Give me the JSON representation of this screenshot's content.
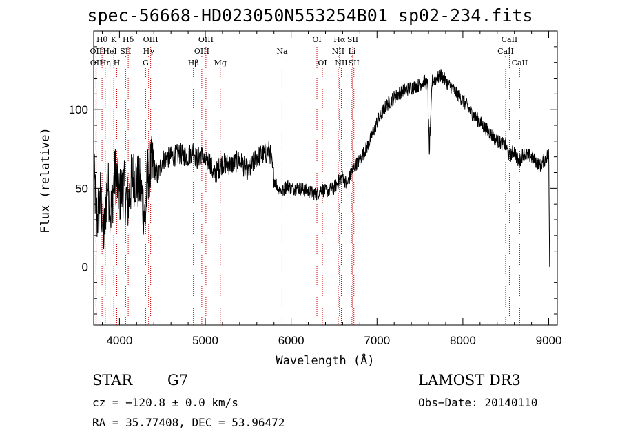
{
  "colors": {
    "line": "#000000",
    "marker": "#cc0000",
    "background": "#ffffff"
  },
  "chart_data": {
    "type": "line",
    "title": "spec-56668-HD023050N553254B01_sp02-234.fits",
    "xlabel": "Wavelength (Å)",
    "ylabel": "Flux (relative)",
    "xlim": [
      3700,
      9100
    ],
    "ylim": [
      -37,
      150
    ],
    "xticks": [
      4000,
      5000,
      6000,
      7000,
      8000,
      9000
    ],
    "yticks": [
      0,
      50,
      100
    ],
    "xtick_labels": [
      "4000",
      "5000",
      "6000",
      "7000",
      "8000",
      "9000"
    ],
    "ytick_labels": [
      "0",
      "50",
      "100"
    ],
    "series": [
      {
        "name": "flux",
        "x": [
          3700,
          3740,
          3780,
          3820,
          3860,
          3900,
          3950,
          4000,
          4050,
          4100,
          4150,
          4200,
          4250,
          4300,
          4330,
          4380,
          4450,
          4500,
          4600,
          4700,
          4800,
          4860,
          4900,
          4950,
          5000,
          5050,
          5100,
          5150,
          5200,
          5300,
          5400,
          5500,
          5600,
          5700,
          5750,
          5800,
          5850,
          5900,
          5950,
          6000,
          6100,
          6200,
          6300,
          6350,
          6400,
          6500,
          6560,
          6600,
          6650,
          6700,
          6750,
          6800,
          6900,
          7000,
          7100,
          7200,
          7300,
          7400,
          7500,
          7550,
          7600,
          7620,
          7640,
          7700,
          7750,
          7800,
          7900,
          8000,
          8100,
          8200,
          8300,
          8400,
          8500,
          8540,
          8600,
          8650,
          8700,
          8800,
          8900,
          9000,
          9010
        ],
        "y": [
          60,
          30,
          45,
          20,
          55,
          35,
          60,
          45,
          50,
          40,
          58,
          55,
          50,
          30,
          60,
          65,
          58,
          68,
          70,
          72,
          70,
          75,
          68,
          72,
          66,
          68,
          58,
          62,
          66,
          65,
          68,
          60,
          70,
          72,
          74,
          56,
          50,
          48,
          52,
          50,
          50,
          48,
          46,
          50,
          48,
          50,
          55,
          58,
          52,
          60,
          65,
          68,
          78,
          92,
          102,
          108,
          112,
          114,
          116,
          118,
          115,
          82,
          118,
          120,
          122,
          118,
          112,
          106,
          98,
          92,
          86,
          80,
          77,
          70,
          74,
          66,
          72,
          70,
          64,
          72,
          2
        ]
      }
    ],
    "lines": [
      {
        "name": "Hθ",
        "x": 3797,
        "row": 1
      },
      {
        "name": "OII",
        "x": 3727,
        "row": 2
      },
      {
        "name": "OII",
        "x": 3729,
        "row": 3
      },
      {
        "name": "K",
        "x": 3934,
        "row": 1
      },
      {
        "name": "HeI",
        "x": 3889,
        "row": 2
      },
      {
        "name": "Hη",
        "x": 3835,
        "row": 3
      },
      {
        "name": "Hδ",
        "x": 4102,
        "row": 1
      },
      {
        "name": "SII",
        "x": 4072,
        "row": 2
      },
      {
        "name": "H",
        "x": 3969,
        "row": 3
      },
      {
        "name": "OIII",
        "x": 4363,
        "row": 1
      },
      {
        "name": "Hγ",
        "x": 4340,
        "row": 2
      },
      {
        "name": "G",
        "x": 4305,
        "row": 3
      },
      {
        "name": "OIII",
        "x": 5007,
        "row": 1
      },
      {
        "name": "OIII",
        "x": 4959,
        "row": 2
      },
      {
        "name": "Hβ",
        "x": 4861,
        "row": 3
      },
      {
        "name": "Mg",
        "x": 5175,
        "row": 3
      },
      {
        "name": "Na",
        "x": 5894,
        "row": 2
      },
      {
        "name": "OI",
        "x": 6300,
        "row": 1
      },
      {
        "name": "OI",
        "x": 6364,
        "row": 3
      },
      {
        "name": "Hα",
        "x": 6563,
        "row": 1
      },
      {
        "name": "NII",
        "x": 6548,
        "row": 2
      },
      {
        "name": "NII",
        "x": 6584,
        "row": 3
      },
      {
        "name": "SII",
        "x": 6717,
        "row": 1
      },
      {
        "name": "Li",
        "x": 6708,
        "row": 2
      },
      {
        "name": "SII",
        "x": 6731,
        "row": 3
      },
      {
        "name": "CaII",
        "x": 8542,
        "row": 1
      },
      {
        "name": "CaII",
        "x": 8498,
        "row": 2
      },
      {
        "name": "CaII",
        "x": 8662,
        "row": 3
      }
    ]
  },
  "info": {
    "object_class": "STAR",
    "subclass": "G7",
    "survey": "LAMOST DR3",
    "redshift": "cz = −120.8 ± 0.0 km/s",
    "obs_date": "Obs−Date: 20140110",
    "coords": "RA =  35.77408, DEC =  53.96472"
  }
}
